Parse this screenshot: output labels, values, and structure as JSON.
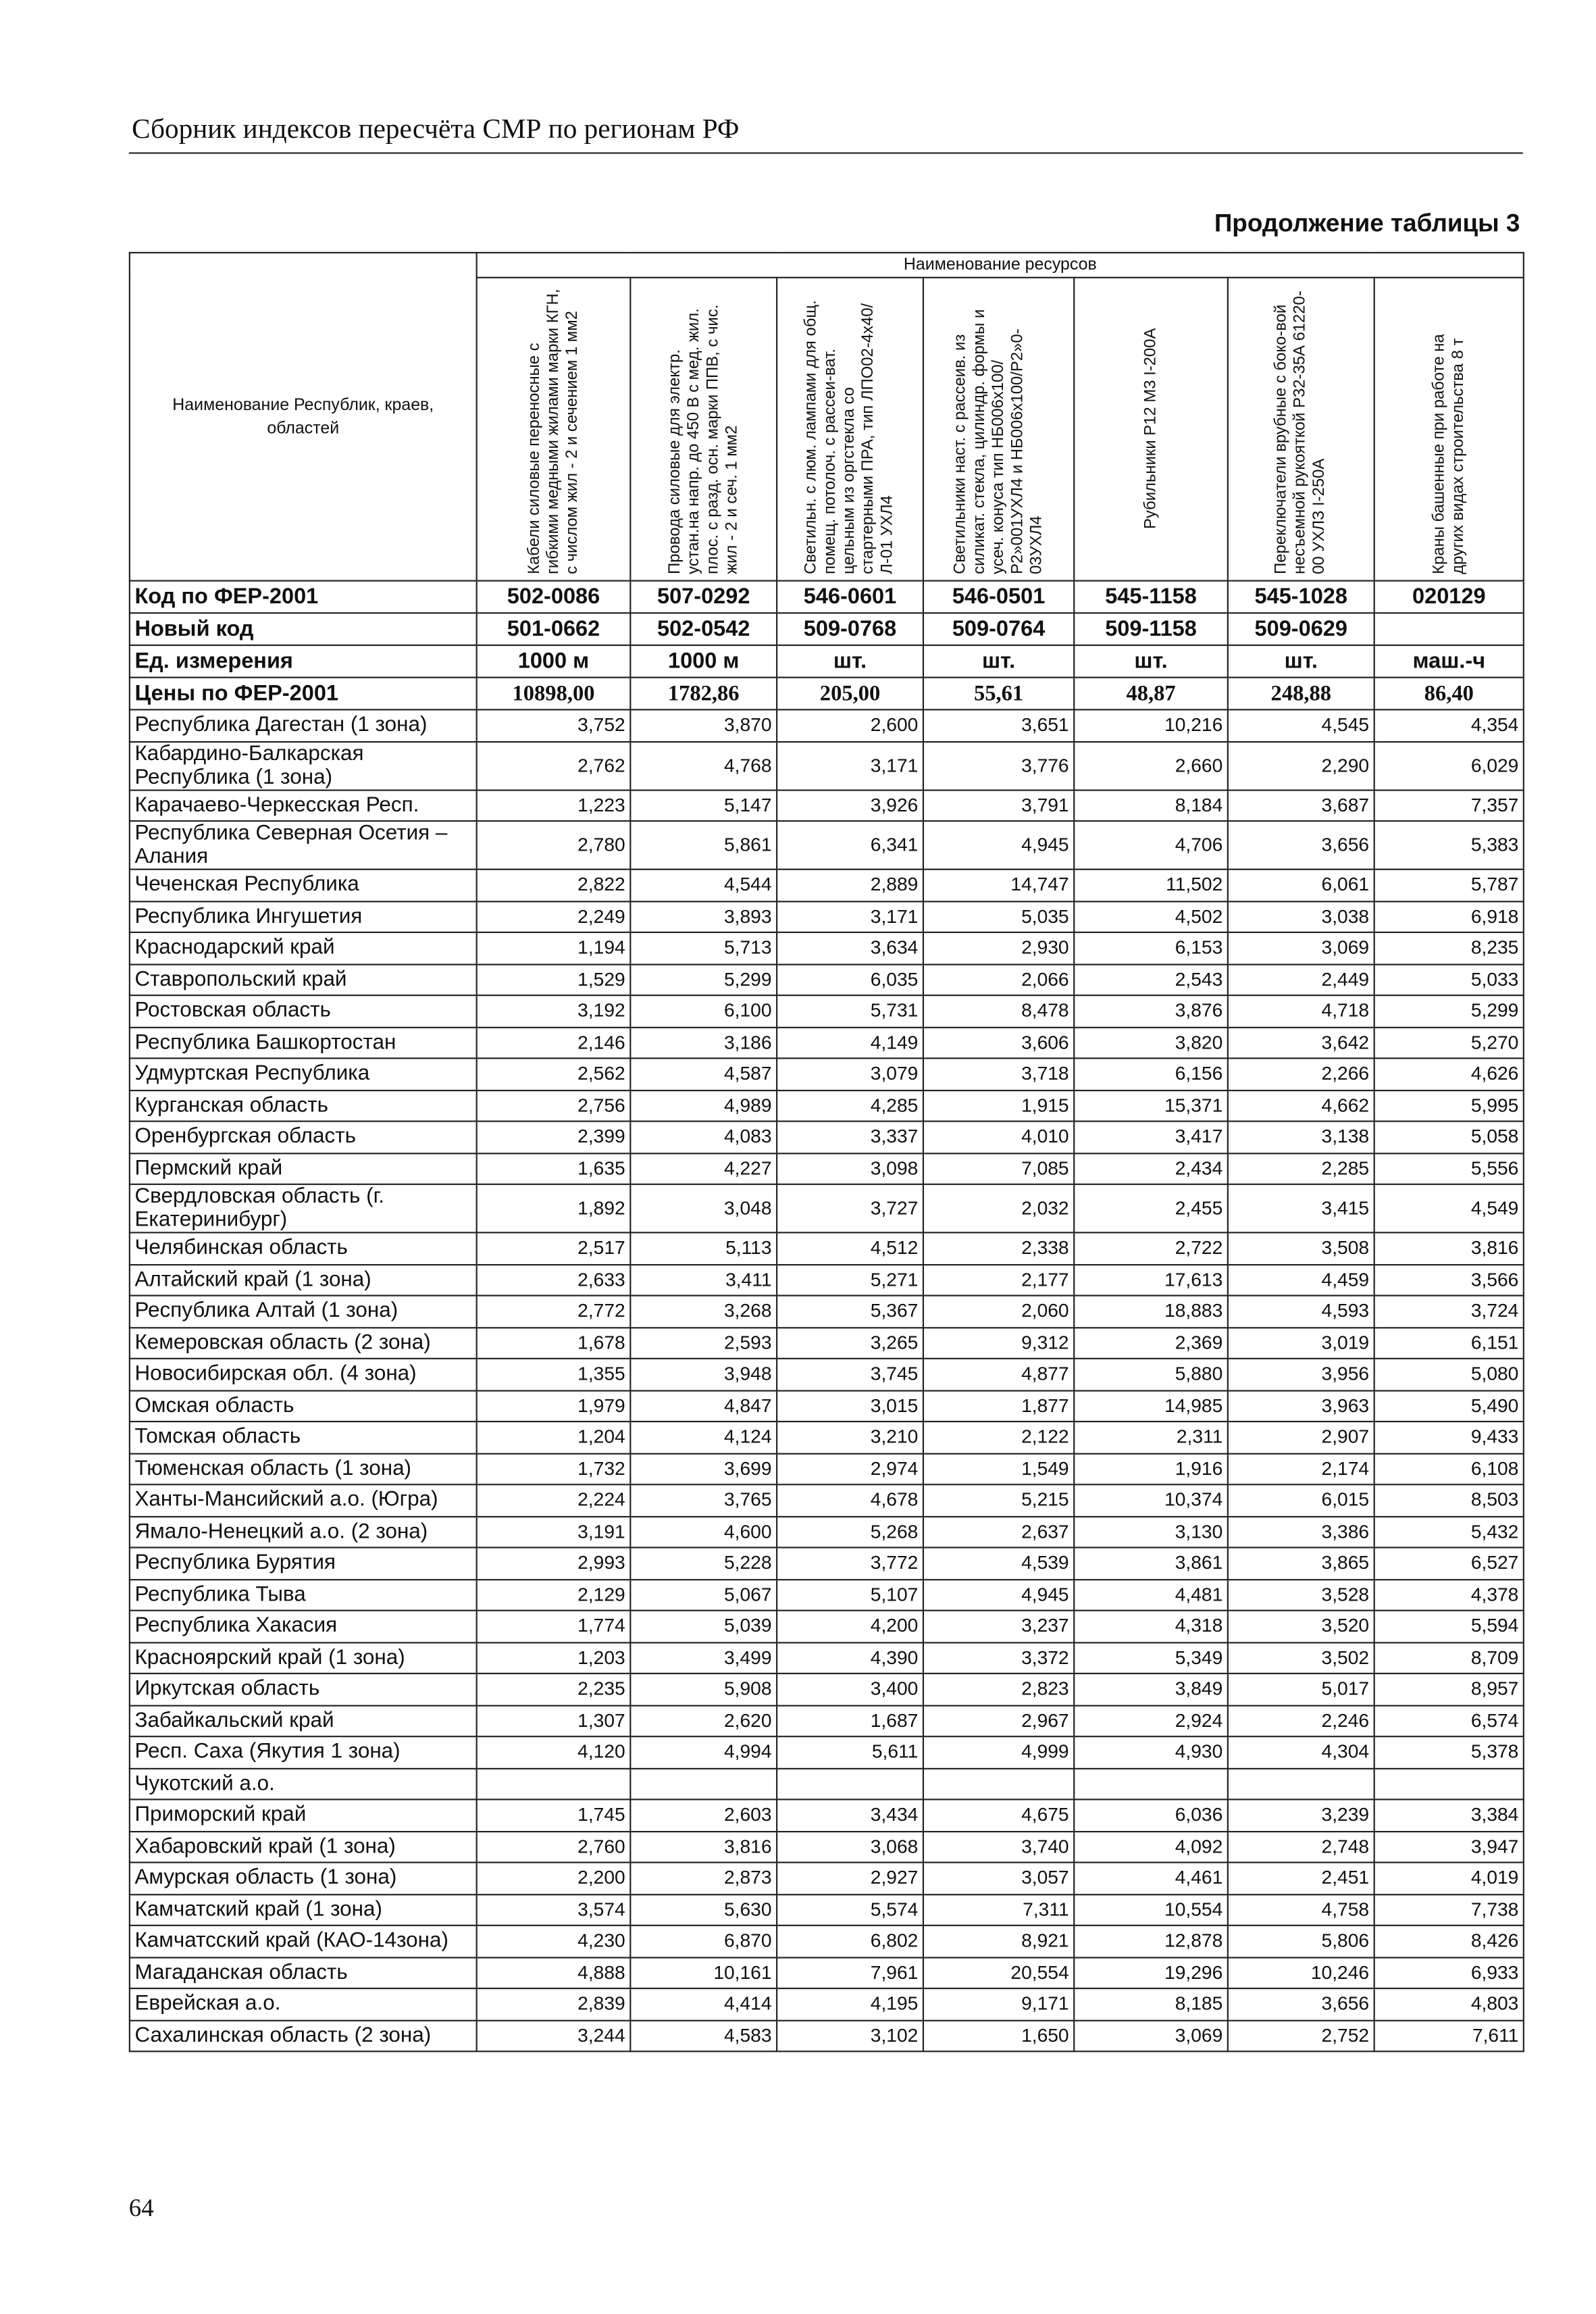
{
  "header": {
    "running_title": "Сборник индексов пересчёта СМР  по регионам РФ"
  },
  "table_caption": "Продолжение таблицы 3",
  "table": {
    "group_header": "Наименование ресурсов",
    "corner_header": "Наименование Республик, краев, областей",
    "columns": [
      "Кабели силовые переносные с гибкими медными жилами марки КГН, с числом жил - 2 и сечением 1 мм2",
      "Провода силовые для электр. устан.на напр. до 450 В с мед. жил. плос. с разд. осн. марки ППВ, с чис. жил - 2 и сеч. 1 мм2",
      "Светильн. с люм. лампами для общ. помещ. потолоч. с рассеи-ват. цельным из оргстекла со стартерными ПРА, тип ЛПО02-4х40/Л-01 УХЛ4",
      "Светильники наст. с рассеив. из силикат. стекла, цилиндр. формы и усеч. конуса тип НБ006х100/Р2»001УХЛ4 и НБ006х100/Р2»0-03УХЛ4",
      "Рубильники Р12 М3 I-200А",
      "Переключатели врубные с боко-вой несъемной рукояткой Р32-35А 61220-00 УХЛЗ I-250А",
      "Краны башенные при работе на других видах строительства 8 т"
    ],
    "meta_rows": [
      [
        "Код по ФЕР-2001",
        "502-0086",
        "507-0292",
        "546-0601",
        "546-0501",
        "545-1158",
        "545-1028",
        "020129"
      ],
      [
        "Новый код",
        "501-0662",
        "502-0542",
        "509-0768",
        "509-0764",
        "509-1158",
        "509-0629"
      ],
      [
        "Ед. измерения",
        "1000 м",
        "1000 м",
        "шт.",
        "шт.",
        "шт.",
        "шт.",
        "маш.-ч"
      ],
      [
        "Цены по ФЕР-2001",
        "10898,00",
        "1782,86",
        "205,00",
        "55,61",
        "48,87",
        "248,88",
        "86,40"
      ]
    ],
    "rows": [
      [
        "Республика Дагестан (1 зона)",
        "3,752",
        "3,870",
        "2,600",
        "3,651",
        "10,216",
        "4,545",
        "4,354"
      ],
      [
        "Кабардино-Балкарская Республика (1 зона)",
        "2,762",
        "4,768",
        "3,171",
        "3,776",
        "2,660",
        "2,290",
        "6,029"
      ],
      [
        "Карачаево-Черкесская Респ.",
        "1,223",
        "5,147",
        "3,926",
        "3,791",
        "8,184",
        "3,687",
        "7,357"
      ],
      [
        "Республика Северная Осетия – Алания",
        "2,780",
        "5,861",
        "6,341",
        "4,945",
        "4,706",
        "3,656",
        "5,383"
      ],
      [
        "Чеченская Республика",
        "2,822",
        "4,544",
        "2,889",
        "14,747",
        "11,502",
        "6,061",
        "5,787"
      ],
      [
        "Республика Ингушетия",
        "2,249",
        "3,893",
        "3,171",
        "5,035",
        "4,502",
        "3,038",
        "6,918"
      ],
      [
        "Краснодарский край",
        "1,194",
        "5,713",
        "3,634",
        "2,930",
        "6,153",
        "3,069",
        "8,235"
      ],
      [
        "Ставропольский край",
        "1,529",
        "5,299",
        "6,035",
        "2,066",
        "2,543",
        "2,449",
        "5,033"
      ],
      [
        "Ростовская область",
        "3,192",
        "6,100",
        "5,731",
        "8,478",
        "3,876",
        "4,718",
        "5,299"
      ],
      [
        "Республика Башкортостан",
        "2,146",
        "3,186",
        "4,149",
        "3,606",
        "3,820",
        "3,642",
        "5,270"
      ],
      [
        "Удмуртская Республика",
        "2,562",
        "4,587",
        "3,079",
        "3,718",
        "6,156",
        "2,266",
        "4,626"
      ],
      [
        "Курганская область",
        "2,756",
        "4,989",
        "4,285",
        "1,915",
        "15,371",
        "4,662",
        "5,995"
      ],
      [
        "Оренбургская область",
        "2,399",
        "4,083",
        "3,337",
        "4,010",
        "3,417",
        "3,138",
        "5,058"
      ],
      [
        "Пермский край",
        "1,635",
        "4,227",
        "3,098",
        "7,085",
        "2,434",
        "2,285",
        "5,556"
      ],
      [
        "Свердловская область (г. Екатеринибург)",
        "1,892",
        "3,048",
        "3,727",
        "2,032",
        "2,455",
        "3,415",
        "4,549"
      ],
      [
        "Челябинская область",
        "2,517",
        "5,113",
        "4,512",
        "2,338",
        "2,722",
        "3,508",
        "3,816"
      ],
      [
        "Алтайский край (1 зона)",
        "2,633",
        "3,411",
        "5,271",
        "2,177",
        "17,613",
        "4,459",
        "3,566"
      ],
      [
        "Республика Алтай (1 зона)",
        "2,772",
        "3,268",
        "5,367",
        "2,060",
        "18,883",
        "4,593",
        "3,724"
      ],
      [
        "Кемеровская область (2 зона)",
        "1,678",
        "2,593",
        "3,265",
        "9,312",
        "2,369",
        "3,019",
        "6,151"
      ],
      [
        "Новосибирская обл. (4 зона)",
        "1,355",
        "3,948",
        "3,745",
        "4,877",
        "5,880",
        "3,956",
        "5,080"
      ],
      [
        "Омская область",
        "1,979",
        "4,847",
        "3,015",
        "1,877",
        "14,985",
        "3,963",
        "5,490"
      ],
      [
        "Томская область",
        "1,204",
        "4,124",
        "3,210",
        "2,122",
        "2,311",
        "2,907",
        "9,433"
      ],
      [
        "Тюменская область (1 зона)",
        "1,732",
        "3,699",
        "2,974",
        "1,549",
        "1,916",
        "2,174",
        "6,108"
      ],
      [
        "Ханты-Мансийский а.о. (Югра)",
        "2,224",
        "3,765",
        "4,678",
        "5,215",
        "10,374",
        "6,015",
        "8,503"
      ],
      [
        "Ямало-Ненецкий а.о. (2 зона)",
        "3,191",
        "4,600",
        "5,268",
        "2,637",
        "3,130",
        "3,386",
        "5,432"
      ],
      [
        "Республика Бурятия",
        "2,993",
        "5,228",
        "3,772",
        "4,539",
        "3,861",
        "3,865",
        "6,527"
      ],
      [
        "Республика Тыва",
        "2,129",
        "5,067",
        "5,107",
        "4,945",
        "4,481",
        "3,528",
        "4,378"
      ],
      [
        "Республика Хакасия",
        "1,774",
        "5,039",
        "4,200",
        "3,237",
        "4,318",
        "3,520",
        "5,594"
      ],
      [
        "Красноярский край (1 зона)",
        "1,203",
        "3,499",
        "4,390",
        "3,372",
        "5,349",
        "3,502",
        "8,709"
      ],
      [
        "Иркутская область",
        "2,235",
        "5,908",
        "3,400",
        "2,823",
        "3,849",
        "5,017",
        "8,957"
      ],
      [
        "Забайкальский край",
        "1,307",
        "2,620",
        "1,687",
        "2,967",
        "2,924",
        "2,246",
        "6,574"
      ],
      [
        "Респ. Саха (Якутия 1 зона)",
        "4,120",
        "4,994",
        "5,611",
        "4,999",
        "4,930",
        "4,304",
        "5,378"
      ],
      [
        "Чукотский а.о."
      ],
      [
        "Приморский край",
        "1,745",
        "2,603",
        "3,434",
        "4,675",
        "6,036",
        "3,239",
        "3,384"
      ],
      [
        "Хабаровский край (1 зона)",
        "2,760",
        "3,816",
        "3,068",
        "3,740",
        "4,092",
        "2,748",
        "3,947"
      ],
      [
        "Амурская область (1 зона)",
        "2,200",
        "2,873",
        "2,927",
        "3,057",
        "4,461",
        "2,451",
        "4,019"
      ],
      [
        "Камчатский край (1 зона)",
        "3,574",
        "5,630",
        "5,574",
        "7,311",
        "10,554",
        "4,758",
        "7,738"
      ],
      [
        "Камчатсский край (КАО-14зона)",
        "4,230",
        "6,870",
        "6,802",
        "8,921",
        "12,878",
        "5,806",
        "8,426"
      ],
      [
        "Магаданская область",
        "4,888",
        "10,161",
        "7,961",
        "20,554",
        "19,296",
        "10,246",
        "6,933"
      ],
      [
        "Еврейская а.о.",
        "2,839",
        "4,414",
        "4,195",
        "9,171",
        "8,185",
        "3,656",
        "4,803"
      ],
      [
        "Сахалинская область (2 зона)",
        "3,244",
        "4,583",
        "3,102",
        "1,650",
        "3,069",
        "2,752",
        "7,611"
      ]
    ]
  },
  "page_number": "64"
}
